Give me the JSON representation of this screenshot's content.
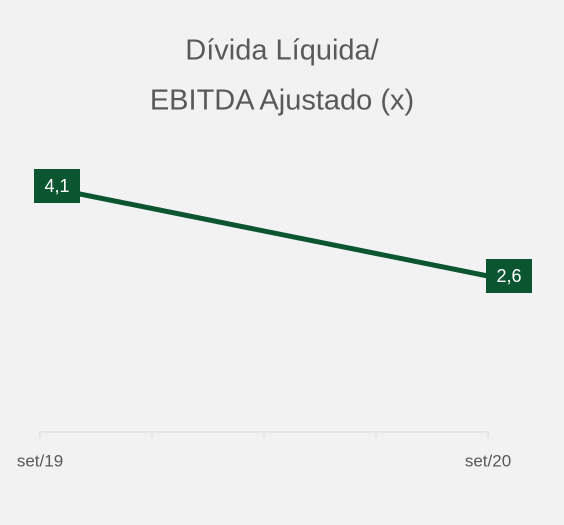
{
  "chart_data": {
    "type": "line",
    "title": [
      "Dívida Líquida/",
      "EBITDA  Ajustado (x)"
    ],
    "categories": [
      "set/19",
      "set/20"
    ],
    "series": [
      {
        "color": "#0b5531",
        "values": [
          4.1,
          2.6
        ],
        "value_labels": [
          "4,1",
          "2,6"
        ]
      }
    ],
    "ylim": [
      0,
      5
    ]
  }
}
